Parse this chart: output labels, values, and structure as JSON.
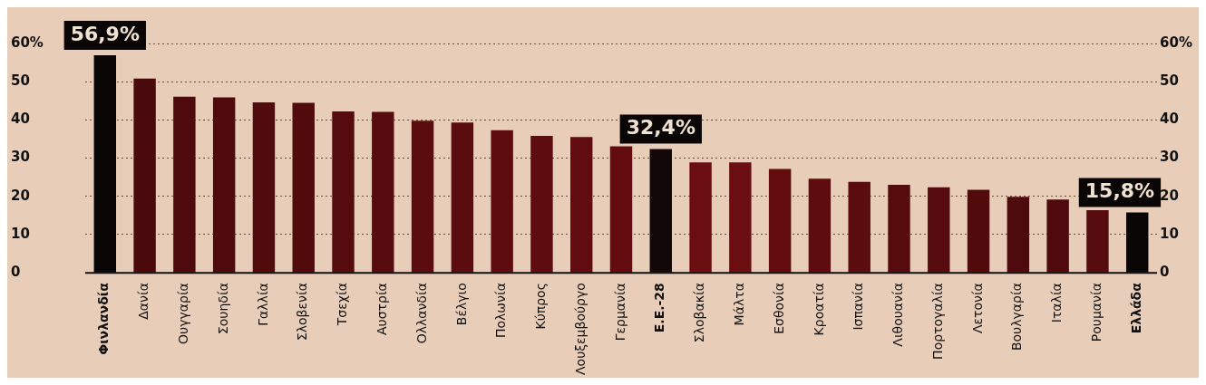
{
  "chart_data": {
    "type": "bar",
    "categories": [
      "Φινλανδία",
      "Δανία",
      "Ουγγαρία",
      "Σουηδία",
      "Γαλλία",
      "Σλοβενία",
      "Τσεχία",
      "Αυστρία",
      "Ολλανδία",
      "Βέλγιο",
      "Πολωνία",
      "Κύπρος",
      "Λουξεμβούργο",
      "Γερμανία",
      "Ε.Ε.-28",
      "Σλοβακία",
      "Μάλτα",
      "Εσθονία",
      "Κροατία",
      "Ισπανία",
      "Λιθουανία",
      "Πορτογαλία",
      "Λετονία",
      "Βουλγαρία",
      "Ιταλία",
      "Ρουμανία",
      "Ελλάδα"
    ],
    "values": [
      56.9,
      50.8,
      46.1,
      45.9,
      44.6,
      44.5,
      42.2,
      42.1,
      39.8,
      39.3,
      37.3,
      35.8,
      35.5,
      33.1,
      32.4,
      28.9,
      28.9,
      27.2,
      24.6,
      23.8,
      23.0,
      22.4,
      21.7,
      19.9,
      19.2,
      16.4,
      15.8
    ],
    "colors": [
      "#0a0606",
      "#4a0a0c",
      "#4e0a0c",
      "#4e0a0c",
      "#520b0d",
      "#520b0d",
      "#560b0e",
      "#560b0e",
      "#5a0c0e",
      "#5a0c0e",
      "#5e0c0f",
      "#5e0c0f",
      "#600c10",
      "#640d10",
      "#120808",
      "#6a0e12",
      "#6a0e12",
      "#640d10",
      "#5e0c0f",
      "#5a0c0e",
      "#560b0e",
      "#560b0e",
      "#520b0d",
      "#4e0a0c",
      "#4e0a0c",
      "#560b0e",
      "#0a0606"
    ],
    "value_labels": [
      "56,9%",
      null,
      null,
      null,
      null,
      null,
      null,
      null,
      null,
      null,
      null,
      null,
      null,
      null,
      "32,4%",
      null,
      null,
      null,
      null,
      null,
      null,
      null,
      null,
      null,
      null,
      null,
      "15,8%"
    ],
    "ylim": [
      0,
      60
    ],
    "yticks": [
      0,
      10,
      20,
      30,
      40,
      50,
      {
        "value": 60,
        "label": "60%"
      }
    ],
    "y2lim": [
      0,
      60
    ],
    "y2ticks": [
      0,
      10,
      20,
      30,
      40,
      50,
      {
        "value": 60,
        "label": "60%"
      }
    ],
    "grid": "y"
  }
}
